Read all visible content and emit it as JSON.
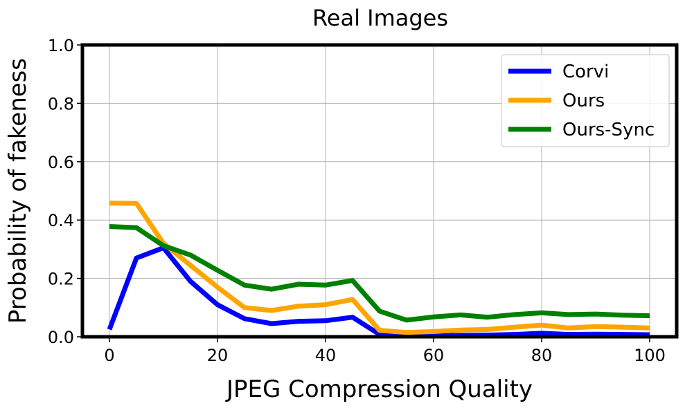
{
  "chart_data": {
    "type": "line",
    "title": "Real Images",
    "xlabel": "JPEG Compression Quality",
    "ylabel": "Probability of fakeness",
    "xlim": [
      -5,
      105
    ],
    "ylim": [
      0,
      1
    ],
    "x_ticks": [
      0,
      20,
      40,
      60,
      80,
      100
    ],
    "y_ticks": [
      "0.0",
      "0.2",
      "0.4",
      "0.6",
      "0.8",
      "1.0"
    ],
    "grid": true,
    "legend_position": "top-right",
    "x": [
      0,
      5,
      10,
      15,
      20,
      25,
      30,
      35,
      40,
      45,
      50,
      55,
      60,
      65,
      70,
      75,
      80,
      85,
      90,
      95,
      100
    ],
    "series": [
      {
        "name": "Corvi",
        "color": "#0000ff",
        "values": [
          0.025,
          0.27,
          0.305,
          0.19,
          0.11,
          0.062,
          0.045,
          0.053,
          0.055,
          0.067,
          0.008,
          0.005,
          0.004,
          0.005,
          0.006,
          0.008,
          0.012,
          0.008,
          0.009,
          0.008,
          0.007
        ]
      },
      {
        "name": "Ours",
        "color": "#ffa500",
        "values": [
          0.458,
          0.457,
          0.32,
          0.245,
          0.17,
          0.1,
          0.09,
          0.105,
          0.11,
          0.128,
          0.022,
          0.015,
          0.018,
          0.023,
          0.025,
          0.033,
          0.04,
          0.03,
          0.035,
          0.033,
          0.03
        ]
      },
      {
        "name": "Ours-Sync",
        "color": "#008000",
        "values": [
          0.378,
          0.374,
          0.312,
          0.28,
          0.228,
          0.177,
          0.163,
          0.18,
          0.177,
          0.193,
          0.088,
          0.057,
          0.068,
          0.075,
          0.067,
          0.076,
          0.082,
          0.076,
          0.078,
          0.074,
          0.072
        ]
      }
    ]
  }
}
